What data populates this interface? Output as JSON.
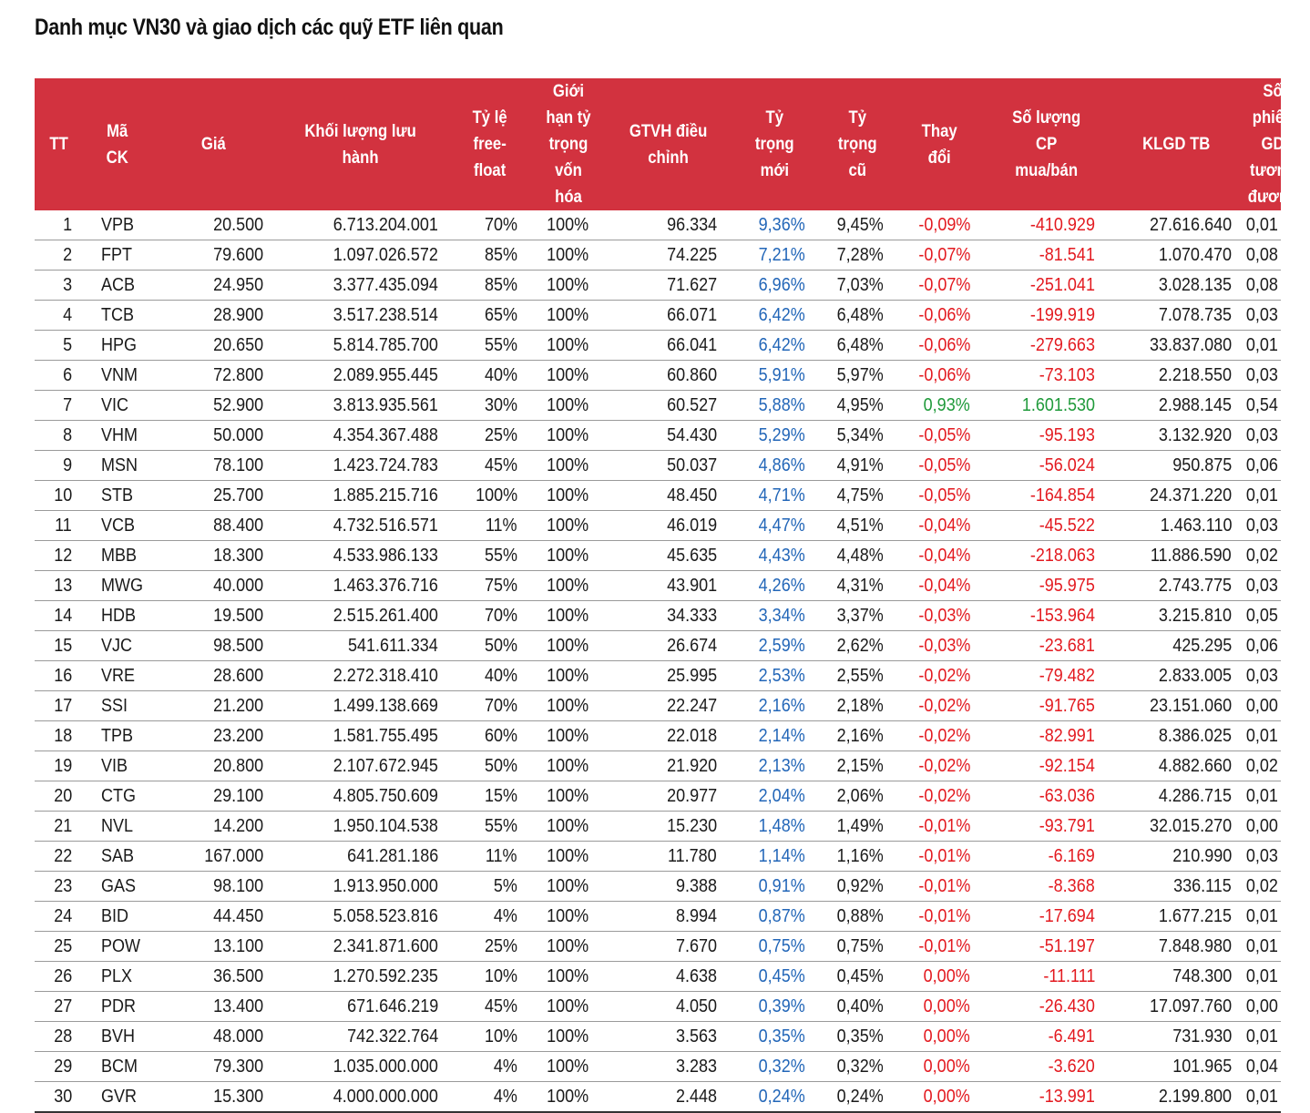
{
  "title": "Danh mục VN30 và giao dịch các quỹ ETF liên quan",
  "colors": {
    "header_bg": "#d2323f",
    "new_weight": "#2266b8",
    "negative": "#e3191f",
    "positive": "#1f9a3a"
  },
  "headers": [
    [
      "TT"
    ],
    [
      "Mã",
      "CK"
    ],
    [
      "Giá"
    ],
    [
      "Khối lượng lưu",
      "hành"
    ],
    [
      "Tỷ lệ",
      "free-",
      "float"
    ],
    [
      "Giới",
      "hạn tỷ",
      "trọng",
      "vốn",
      "hóa"
    ],
    [
      "GTVH điều",
      "chỉnh"
    ],
    [
      "Tỷ",
      "trọng",
      "mới"
    ],
    [
      "Tỷ",
      "trọng",
      "cũ"
    ],
    [
      "Thay",
      "đổi"
    ],
    [
      "Số lượng",
      "CP",
      "mua/bán"
    ],
    [
      "KLGD TB"
    ],
    [
      "Số",
      "phiên",
      "GD",
      "tương",
      "đương"
    ]
  ],
  "rows": [
    [
      "1",
      "VPB",
      "20.500",
      "6.713.204.001",
      "70%",
      "100%",
      "96.334",
      "9,36%",
      "9,45%",
      "-0,09%",
      "-410.929",
      "27.616.640",
      "0,01"
    ],
    [
      "2",
      "FPT",
      "79.600",
      "1.097.026.572",
      "85%",
      "100%",
      "74.225",
      "7,21%",
      "7,28%",
      "-0,07%",
      "-81.541",
      "1.070.470",
      "0,08"
    ],
    [
      "3",
      "ACB",
      "24.950",
      "3.377.435.094",
      "85%",
      "100%",
      "71.627",
      "6,96%",
      "7,03%",
      "-0,07%",
      "-251.041",
      "3.028.135",
      "0,08"
    ],
    [
      "4",
      "TCB",
      "28.900",
      "3.517.238.514",
      "65%",
      "100%",
      "66.071",
      "6,42%",
      "6,48%",
      "-0,06%",
      "-199.919",
      "7.078.735",
      "0,03"
    ],
    [
      "5",
      "HPG",
      "20.650",
      "5.814.785.700",
      "55%",
      "100%",
      "66.041",
      "6,42%",
      "6,48%",
      "-0,06%",
      "-279.663",
      "33.837.080",
      "0,01"
    ],
    [
      "6",
      "VNM",
      "72.800",
      "2.089.955.445",
      "40%",
      "100%",
      "60.860",
      "5,91%",
      "5,97%",
      "-0,06%",
      "-73.103",
      "2.218.550",
      "0,03"
    ],
    [
      "7",
      "VIC",
      "52.900",
      "3.813.935.561",
      "30%",
      "100%",
      "60.527",
      "5,88%",
      "4,95%",
      "0,93%",
      "1.601.530",
      "2.988.145",
      "0,54"
    ],
    [
      "8",
      "VHM",
      "50.000",
      "4.354.367.488",
      "25%",
      "100%",
      "54.430",
      "5,29%",
      "5,34%",
      "-0,05%",
      "-95.193",
      "3.132.920",
      "0,03"
    ],
    [
      "9",
      "MSN",
      "78.100",
      "1.423.724.783",
      "45%",
      "100%",
      "50.037",
      "4,86%",
      "4,91%",
      "-0,05%",
      "-56.024",
      "950.875",
      "0,06"
    ],
    [
      "10",
      "STB",
      "25.700",
      "1.885.215.716",
      "100%",
      "100%",
      "48.450",
      "4,71%",
      "4,75%",
      "-0,05%",
      "-164.854",
      "24.371.220",
      "0,01"
    ],
    [
      "11",
      "VCB",
      "88.400",
      "4.732.516.571",
      "11%",
      "100%",
      "46.019",
      "4,47%",
      "4,51%",
      "-0,04%",
      "-45.522",
      "1.463.110",
      "0,03"
    ],
    [
      "12",
      "MBB",
      "18.300",
      "4.533.986.133",
      "55%",
      "100%",
      "45.635",
      "4,43%",
      "4,48%",
      "-0,04%",
      "-218.063",
      "11.886.590",
      "0,02"
    ],
    [
      "13",
      "MWG",
      "40.000",
      "1.463.376.716",
      "75%",
      "100%",
      "43.901",
      "4,26%",
      "4,31%",
      "-0,04%",
      "-95.975",
      "2.743.775",
      "0,03"
    ],
    [
      "14",
      "HDB",
      "19.500",
      "2.515.261.400",
      "70%",
      "100%",
      "34.333",
      "3,34%",
      "3,37%",
      "-0,03%",
      "-153.964",
      "3.215.810",
      "0,05"
    ],
    [
      "15",
      "VJC",
      "98.500",
      "541.611.334",
      "50%",
      "100%",
      "26.674",
      "2,59%",
      "2,62%",
      "-0,03%",
      "-23.681",
      "425.295",
      "0,06"
    ],
    [
      "16",
      "VRE",
      "28.600",
      "2.272.318.410",
      "40%",
      "100%",
      "25.995",
      "2,53%",
      "2,55%",
      "-0,02%",
      "-79.482",
      "2.833.005",
      "0,03"
    ],
    [
      "17",
      "SSI",
      "21.200",
      "1.499.138.669",
      "70%",
      "100%",
      "22.247",
      "2,16%",
      "2,18%",
      "-0,02%",
      "-91.765",
      "23.151.060",
      "0,00"
    ],
    [
      "18",
      "TPB",
      "23.200",
      "1.581.755.495",
      "60%",
      "100%",
      "22.018",
      "2,14%",
      "2,16%",
      "-0,02%",
      "-82.991",
      "8.386.025",
      "0,01"
    ],
    [
      "19",
      "VIB",
      "20.800",
      "2.107.672.945",
      "50%",
      "100%",
      "21.920",
      "2,13%",
      "2,15%",
      "-0,02%",
      "-92.154",
      "4.882.660",
      "0,02"
    ],
    [
      "20",
      "CTG",
      "29.100",
      "4.805.750.609",
      "15%",
      "100%",
      "20.977",
      "2,04%",
      "2,06%",
      "-0,02%",
      "-63.036",
      "4.286.715",
      "0,01"
    ],
    [
      "21",
      "NVL",
      "14.200",
      "1.950.104.538",
      "55%",
      "100%",
      "15.230",
      "1,48%",
      "1,49%",
      "-0,01%",
      "-93.791",
      "32.015.270",
      "0,00"
    ],
    [
      "22",
      "SAB",
      "167.000",
      "641.281.186",
      "11%",
      "100%",
      "11.780",
      "1,14%",
      "1,16%",
      "-0,01%",
      "-6.169",
      "210.990",
      "0,03"
    ],
    [
      "23",
      "GAS",
      "98.100",
      "1.913.950.000",
      "5%",
      "100%",
      "9.388",
      "0,91%",
      "0,92%",
      "-0,01%",
      "-8.368",
      "336.115",
      "0,02"
    ],
    [
      "24",
      "BID",
      "44.450",
      "5.058.523.816",
      "4%",
      "100%",
      "8.994",
      "0,87%",
      "0,88%",
      "-0,01%",
      "-17.694",
      "1.677.215",
      "0,01"
    ],
    [
      "25",
      "POW",
      "13.100",
      "2.341.871.600",
      "25%",
      "100%",
      "7.670",
      "0,75%",
      "0,75%",
      "-0,01%",
      "-51.197",
      "7.848.980",
      "0,01"
    ],
    [
      "26",
      "PLX",
      "36.500",
      "1.270.592.235",
      "10%",
      "100%",
      "4.638",
      "0,45%",
      "0,45%",
      "0,00%",
      "-11.111",
      "748.300",
      "0,01"
    ],
    [
      "27",
      "PDR",
      "13.400",
      "671.646.219",
      "45%",
      "100%",
      "4.050",
      "0,39%",
      "0,40%",
      "0,00%",
      "-26.430",
      "17.097.760",
      "0,00"
    ],
    [
      "28",
      "BVH",
      "48.000",
      "742.322.764",
      "10%",
      "100%",
      "3.563",
      "0,35%",
      "0,35%",
      "0,00%",
      "-6.491",
      "731.930",
      "0,01"
    ],
    [
      "29",
      "BCM",
      "79.300",
      "1.035.000.000",
      "4%",
      "100%",
      "3.283",
      "0,32%",
      "0,32%",
      "0,00%",
      "-3.620",
      "101.965",
      "0,04"
    ],
    [
      "30",
      "GVR",
      "15.300",
      "4.000.000.000",
      "4%",
      "100%",
      "2.448",
      "0,24%",
      "0,24%",
      "0,00%",
      "-13.991",
      "2.199.800",
      "0,01"
    ]
  ]
}
